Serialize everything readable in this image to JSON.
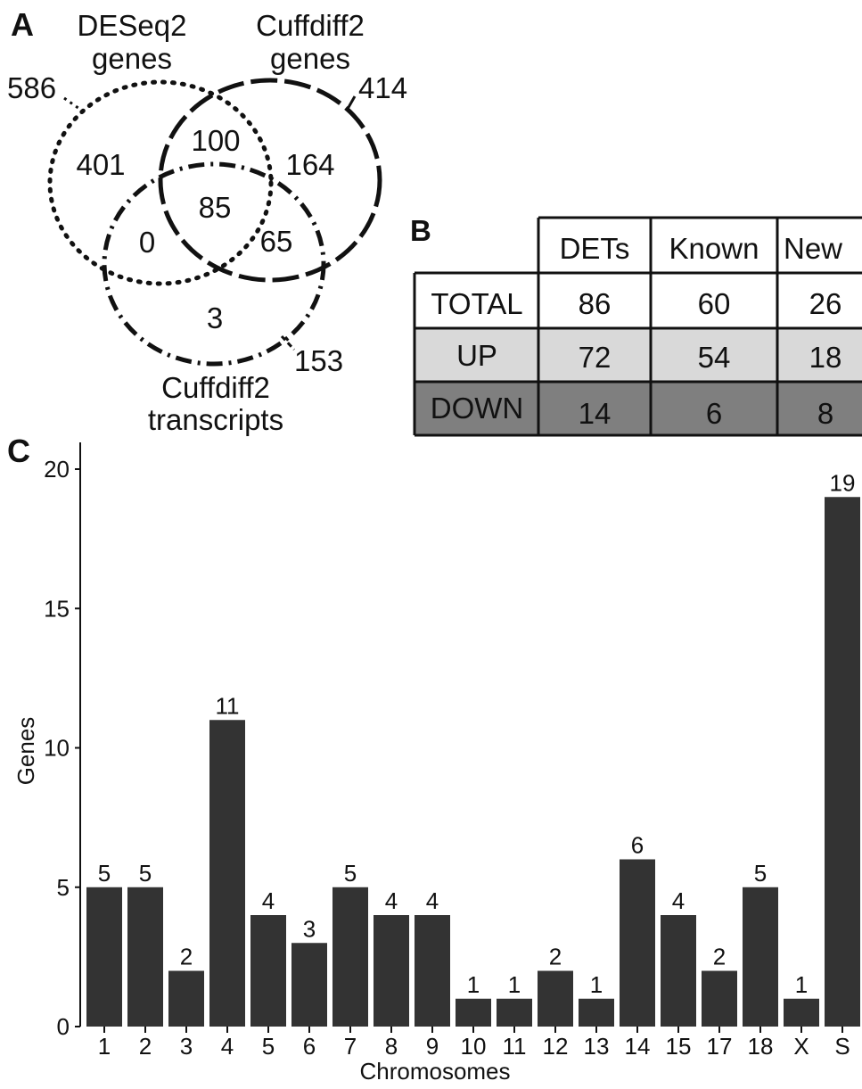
{
  "panel_a": {
    "letter": "A",
    "sets": [
      {
        "name_lines": [
          "DESeq2",
          "genes"
        ],
        "total": "586"
      },
      {
        "name_lines": [
          "Cuffdiff2",
          "genes"
        ],
        "total": "414"
      },
      {
        "name_lines": [
          "Cuffdiff2",
          "transcripts"
        ],
        "total": "153"
      }
    ],
    "regions": {
      "deseq_only": "401",
      "deseq_cuffgenes": "100",
      "cuffgenes_only": "164",
      "all_three": "85",
      "deseq_transcripts": "0",
      "cuffgenes_transcripts": "65",
      "transcripts_only": "3"
    }
  },
  "panel_b": {
    "letter": "B",
    "columns": [
      "DETs",
      "Known",
      "New"
    ],
    "rows": [
      {
        "label": "TOTAL",
        "values": [
          "86",
          "60",
          "26"
        ],
        "fill": "#ffffff"
      },
      {
        "label": "UP",
        "values": [
          "72",
          "54",
          "18"
        ],
        "fill": "#d9d9d9"
      },
      {
        "label": "DOWN",
        "values": [
          "14",
          "6",
          "8"
        ],
        "fill": "#7f7f7f"
      }
    ]
  },
  "chart_data": {
    "panel_letter": "C",
    "type": "bar",
    "xlabel": "Chromosomes",
    "ylabel": "Genes",
    "ylim": [
      0,
      20
    ],
    "yticks": [
      0,
      5,
      10,
      15,
      20
    ],
    "categories": [
      "1",
      "2",
      "3",
      "4",
      "5",
      "6",
      "7",
      "8",
      "9",
      "10",
      "11",
      "12",
      "13",
      "14",
      "15",
      "17",
      "18",
      "X",
      "S"
    ],
    "values": [
      5,
      5,
      2,
      11,
      4,
      3,
      5,
      4,
      4,
      1,
      1,
      2,
      1,
      6,
      4,
      2,
      5,
      1,
      19
    ],
    "bar_color": "#333333",
    "grid": false,
    "data_labels": true
  }
}
